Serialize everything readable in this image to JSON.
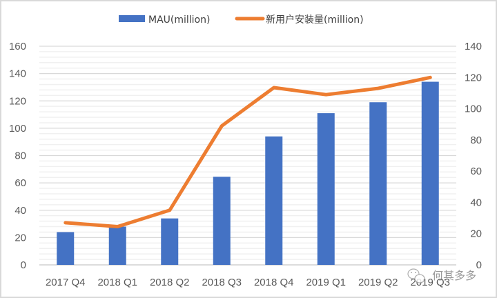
{
  "chart_data": {
    "type": "bar+line",
    "title": "",
    "categories": [
      "2017 Q4",
      "2018 Q1",
      "2018 Q2",
      "2018 Q3",
      "2018 Q4",
      "2019 Q1",
      "2019 Q2",
      "2019 Q3"
    ],
    "series": [
      {
        "name": "MAU(million)",
        "type": "bar",
        "axis": "left",
        "color": "#4472C4",
        "values": [
          24,
          28,
          34,
          64.5,
          94,
          111,
          119,
          134
        ]
      },
      {
        "name": "新用户安装量(million)",
        "type": "line",
        "axis": "right",
        "color": "#ED7D31",
        "values": [
          27,
          24.5,
          35,
          89,
          113.5,
          109,
          113,
          120
        ]
      }
    ],
    "left_axis": {
      "min": 0,
      "max": 160,
      "step": 20,
      "ticks": [
        "0",
        "20",
        "40",
        "60",
        "80",
        "100",
        "120",
        "140",
        "160"
      ]
    },
    "right_axis": {
      "min": 0,
      "max": 140,
      "step": 20,
      "ticks": [
        "0",
        "20",
        "40",
        "60",
        "80",
        "100",
        "120",
        "140"
      ]
    },
    "xlabel": "",
    "ylabel": "",
    "grid": {
      "major": true,
      "minor": true
    },
    "legend_position": "top"
  },
  "legend": {
    "bar_label": "MAU(million)",
    "line_label": "新用户安装量(million)"
  },
  "watermark": {
    "text": "何其多多",
    "icon": "wechat-icon"
  }
}
